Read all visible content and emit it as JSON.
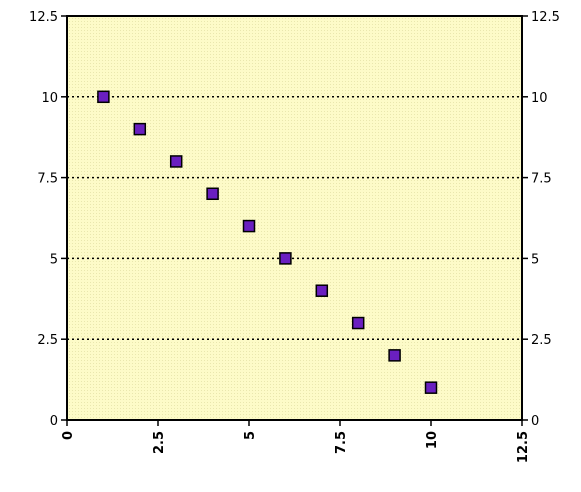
{
  "chart_data": {
    "type": "scatter",
    "title": "",
    "xlabel": "",
    "ylabel": "",
    "xlim": [
      0,
      12.5
    ],
    "ylim": [
      0,
      12.5
    ],
    "x_ticks": [
      "0",
      "2.5",
      "5",
      "7.5",
      "10",
      "12.5"
    ],
    "y_ticks": [
      "0",
      "2.5",
      "5",
      "7.5",
      "10",
      "12.5"
    ],
    "grid": "horizontal dotted lines",
    "plot_background": "#fdfbc8",
    "series": [
      {
        "marker": "square",
        "color": "#6a1fc0",
        "points": [
          {
            "x": 1,
            "y": 10
          },
          {
            "x": 2,
            "y": 9
          },
          {
            "x": 3,
            "y": 8
          },
          {
            "x": 4,
            "y": 7
          },
          {
            "x": 5,
            "y": 6
          },
          {
            "x": 6,
            "y": 5
          },
          {
            "x": 7,
            "y": 4
          },
          {
            "x": 8,
            "y": 3
          },
          {
            "x": 9,
            "y": 2
          },
          {
            "x": 10,
            "y": 1
          }
        ]
      }
    ]
  }
}
